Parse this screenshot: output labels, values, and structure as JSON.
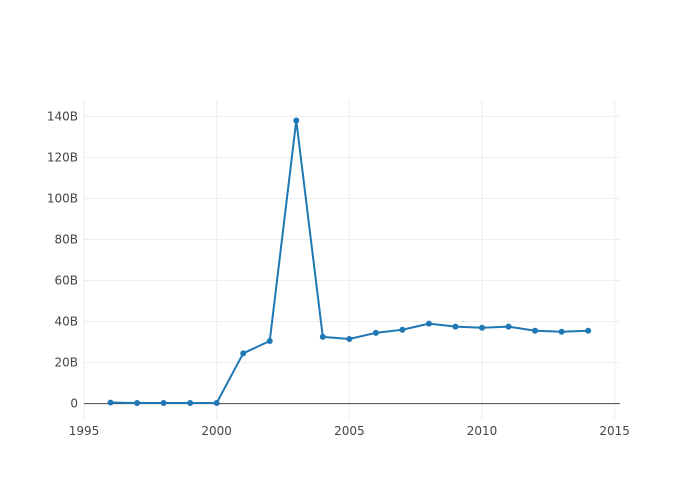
{
  "chart_data": {
    "type": "line",
    "title": "",
    "xlabel": "",
    "ylabel": "",
    "x": [
      1996,
      1997,
      1998,
      1999,
      2000,
      2001,
      2002,
      2003,
      2004,
      2005,
      2006,
      2007,
      2008,
      2009,
      2010,
      2011,
      2012,
      2013,
      2014
    ],
    "series": [
      {
        "values": [
          0.5,
          0.3,
          0.3,
          0.3,
          0.3,
          24.5,
          30.5,
          138,
          32.5,
          31.5,
          34.5,
          36,
          39,
          37.5,
          37,
          37.5,
          35.5,
          35,
          35.5
        ]
      }
    ],
    "xlim": [
      1995,
      2015.2
    ],
    "ylim": [
      -8,
      148
    ],
    "x_ticks": [
      1995,
      2000,
      2005,
      2010,
      2015
    ],
    "x_tick_labels": [
      "1995",
      "2000",
      "2005",
      "2010",
      "2015"
    ],
    "y_ticks": [
      0,
      20,
      40,
      60,
      80,
      100,
      120,
      140
    ],
    "y_tick_labels": [
      "0",
      "20B",
      "40B",
      "60B",
      "80B",
      "100B",
      "120B",
      "140B"
    ],
    "grid": true,
    "legend": "none",
    "colors": {
      "line": "#1f77b4",
      "grid": "#eeeeee",
      "zero_line": "#444444",
      "tick_text": "#444444"
    }
  }
}
